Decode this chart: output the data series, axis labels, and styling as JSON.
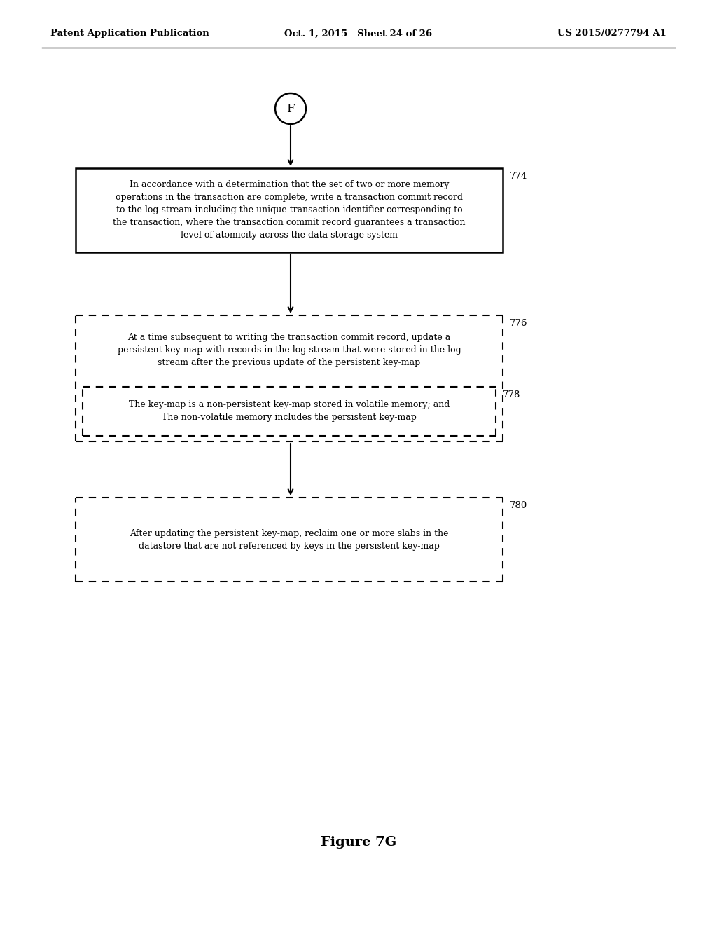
{
  "bg_color": "#ffffff",
  "header_left": "Patent Application Publication",
  "header_mid": "Oct. 1, 2015   Sheet 24 of 26",
  "header_right": "US 2015/0277794 A1",
  "figure_label": "Figure 7G",
  "connector_label": "F",
  "box774": {
    "label": "774",
    "text": "In accordance with a determination that the set of two or more memory\noperations in the transaction are complete, write a transaction commit record\nto the log stream including the unique transaction identifier corresponding to\nthe transaction, where the transaction commit record guarantees a transaction\nlevel of atomicity across the data storage system",
    "style": "solid"
  },
  "box776": {
    "label": "776",
    "text": "At a time subsequent to writing the transaction commit record, update a\npersistent key-map with records in the log stream that were stored in the log\nstream after the previous update of the persistent key-map",
    "style": "dashed"
  },
  "box778": {
    "label": "778",
    "text": "The key-map is a non-persistent key-map stored in volatile memory; and\nThe non-volatile memory includes the persistent key-map",
    "style": "dashed"
  },
  "box780": {
    "label": "780",
    "text": "After updating the persistent key-map, reclaim one or more slabs in the\ndatastore that are not referenced by keys in the persistent key-map",
    "style": "dashed"
  }
}
